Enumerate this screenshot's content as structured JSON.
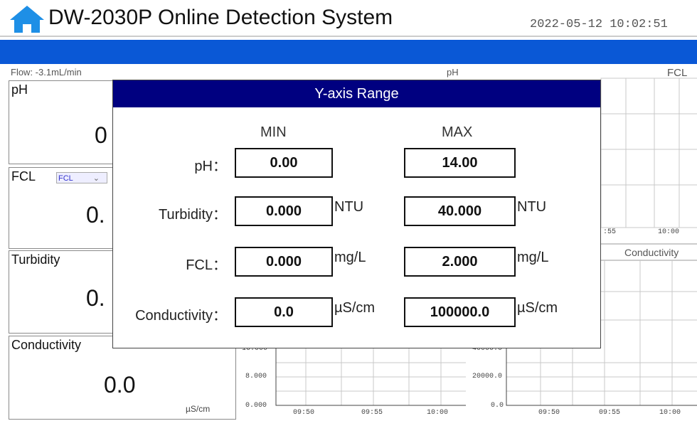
{
  "header": {
    "title": "DW-2030P Online Detection System",
    "datetime": "2022-05-12 10:02:51"
  },
  "status": {
    "flow": "Flow: -3.1mL/min",
    "ph_chart": "pH",
    "fcl_chart": "FCL"
  },
  "panels": [
    {
      "label": "pH",
      "value": "0"
    },
    {
      "label": "FCL",
      "selector": "FCL",
      "value": "0."
    },
    {
      "label": "Turbidity",
      "value": "0."
    },
    {
      "label": "Conductivity",
      "value": "0.0",
      "unit": "µS/cm"
    }
  ],
  "charts": {
    "fcl": {
      "x_ticks": [
        ":55",
        "10:00"
      ]
    },
    "conductivity_title": "Conductivity",
    "turbidity": {
      "y_ticks": [
        "16.000",
        "8.000",
        "0.000"
      ],
      "x_ticks": [
        "09:50",
        "09:55",
        "10:00"
      ]
    },
    "conductivity": {
      "y_ticks": [
        "40000.0",
        "20000.0",
        "0.0"
      ],
      "x_ticks": [
        "09:50",
        "09:55",
        "10:00"
      ]
    }
  },
  "dialog": {
    "title": "Y-axis Range",
    "min_header": "MIN",
    "max_header": "MAX",
    "rows": [
      {
        "label": "pH：",
        "min": "0.00",
        "max": "14.00"
      },
      {
        "label": "Turbidity：",
        "min": "0.000",
        "max": "40.000",
        "unit": "NTU"
      },
      {
        "label": "FCL：",
        "min": "0.000",
        "max": "2.000",
        "unit": "mg/L"
      },
      {
        "label": "Conductivity：",
        "min": "0.0",
        "max": "100000.0",
        "unit": "µS/cm"
      }
    ]
  }
}
